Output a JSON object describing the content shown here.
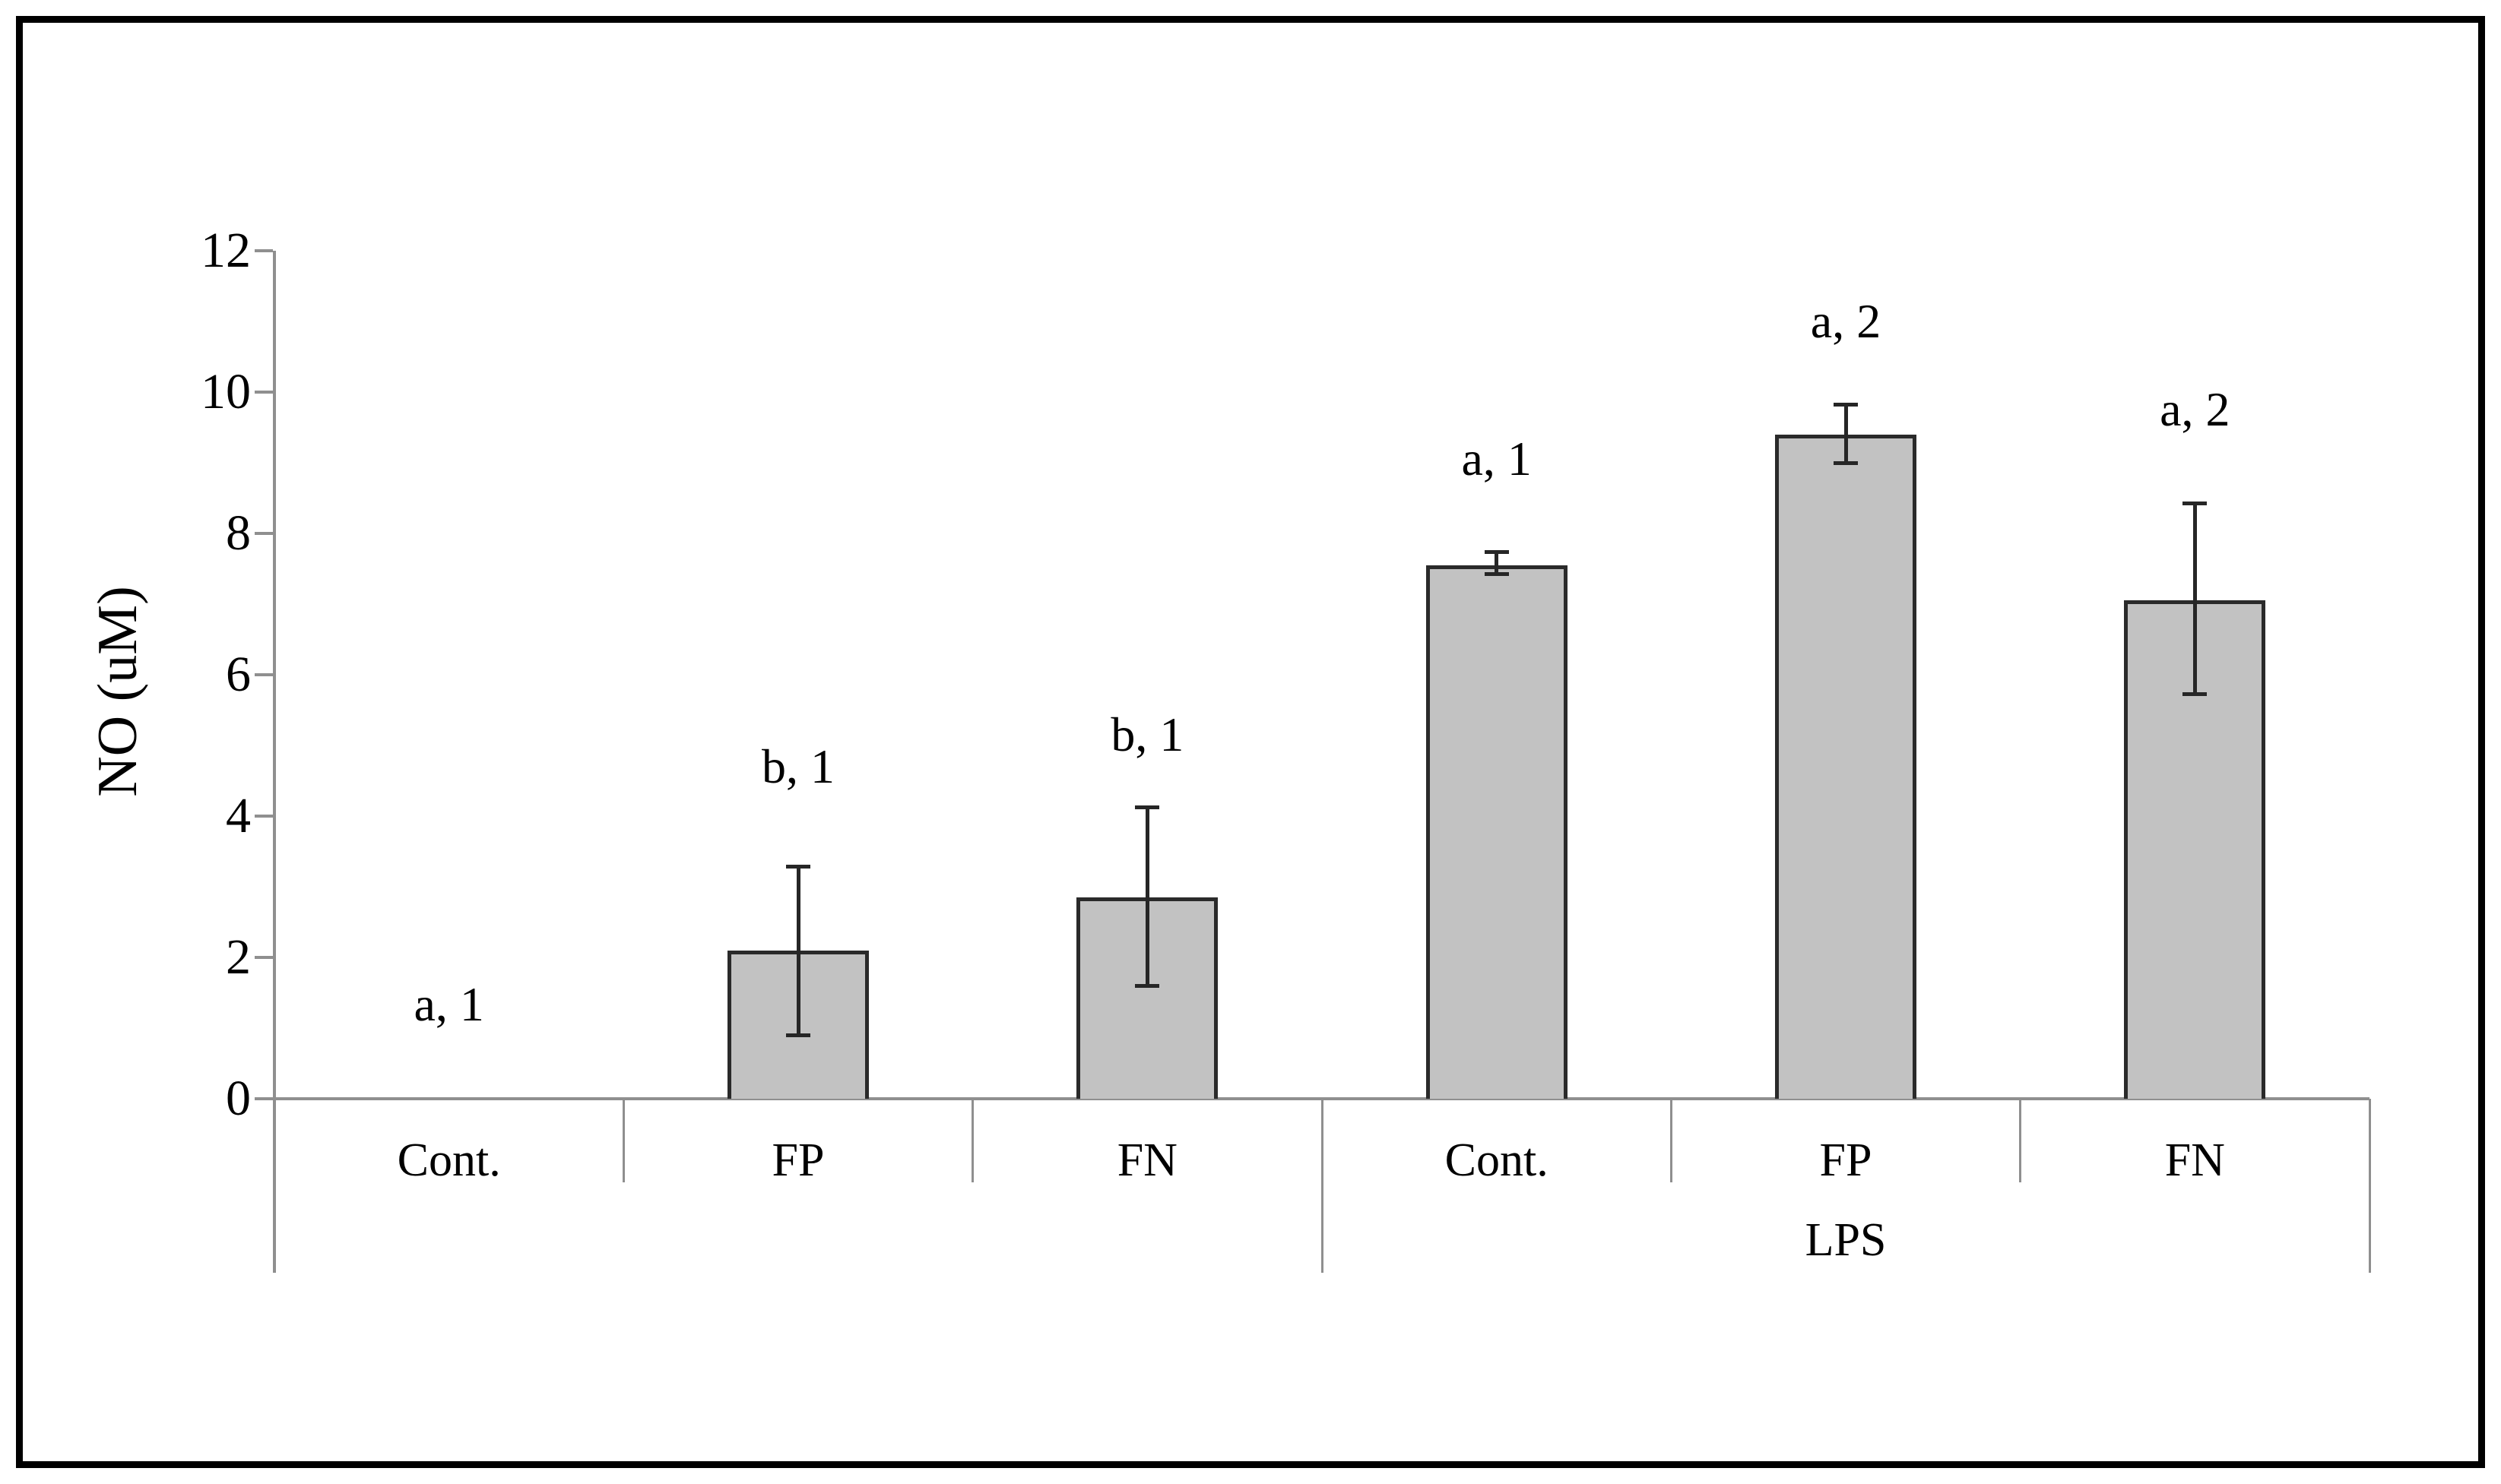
{
  "chart_data": {
    "type": "bar",
    "title": "",
    "ylabel": "NO (uM)",
    "xlabel": "",
    "ylim": [
      0,
      12
    ],
    "yticks": [
      0,
      2,
      4,
      6,
      8,
      10,
      12
    ],
    "grid": false,
    "legend": null,
    "categories": [
      "Cont.",
      "FP",
      "FN",
      "Cont.",
      "FP",
      "FN"
    ],
    "group_labels": [
      {
        "label": "LPS",
        "start_index": 3,
        "end_index": 6
      }
    ],
    "series": [
      {
        "name": "NO",
        "values": [
          0,
          2.1,
          2.85,
          7.55,
          9.4,
          7.05
        ],
        "error_top": [
          null,
          3.28,
          4.12,
          7.74,
          9.82,
          8.43
        ],
        "error_bottom": [
          null,
          0.9,
          1.6,
          7.43,
          9.0,
          5.73
        ]
      }
    ],
    "annotations": [
      {
        "text": "a, 1",
        "category_index": 0,
        "y": 1.33
      },
      {
        "text": "b, 1",
        "category_index": 1,
        "y": 4.7
      },
      {
        "text": "b, 1",
        "category_index": 2,
        "y": 5.15
      },
      {
        "text": "a, 1",
        "category_index": 3,
        "y": 9.05
      },
      {
        "text": "a, 2",
        "category_index": 4,
        "y": 11.0
      },
      {
        "text": "a, 2",
        "category_index": 5,
        "y": 9.75
      }
    ],
    "colors": {
      "bar_fill": "#c2c2c2",
      "bar_border": "#2a2a2a",
      "error_bar": "#262626",
      "axis": "#8f8f8f",
      "text": "#000000",
      "frame": "#000000",
      "background": "#ffffff"
    }
  }
}
